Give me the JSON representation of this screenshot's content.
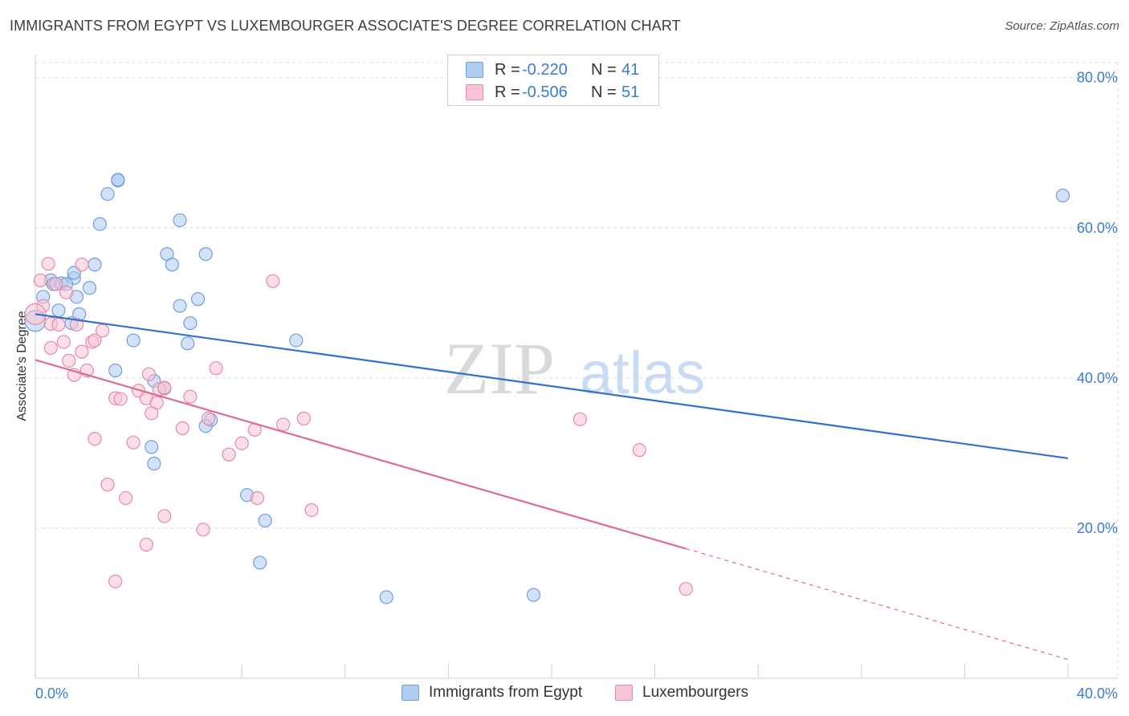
{
  "title": "IMMIGRANTS FROM EGYPT VS LUXEMBOURGER ASSOCIATE'S DEGREE CORRELATION CHART",
  "source": "Source: ZipAtlas.com",
  "watermark": {
    "zip": "ZIP",
    "atlas": "atlas"
  },
  "legend": {
    "rows": [
      {
        "r_label": "R =",
        "r_value": "-0.220",
        "n_label": "N =",
        "n_value": "41",
        "color": "#aecbf2",
        "border": "#6f9fdc"
      },
      {
        "r_label": "R =",
        "r_value": "-0.506",
        "n_label": "N =",
        "n_value": "51",
        "color": "#f7c4d3",
        "border": "#e88aa6"
      }
    ]
  },
  "bottom_legend": [
    {
      "label": "Immigrants from Egypt",
      "color": "#aecbf2",
      "border": "#6f9fdc"
    },
    {
      "label": "Luxembourgers",
      "color": "#f7c4d3",
      "border": "#e88aa6"
    }
  ],
  "chart_data": {
    "type": "scatter",
    "title": "IMMIGRANTS FROM EGYPT VS LUXEMBOURGER ASSOCIATE'S DEGREE CORRELATION CHART",
    "xlabel": "",
    "ylabel": "Associate's Degree",
    "xlim": [
      0,
      40
    ],
    "ylim": [
      0,
      82
    ],
    "x_tick_labels": {
      "left": "0.0%",
      "right": "40.0%"
    },
    "y_ticks": [
      20,
      40,
      60,
      80
    ],
    "y_tick_labels": [
      "20.0%",
      "40.0%",
      "60.0%",
      "80.0%"
    ],
    "grid": true,
    "series": [
      {
        "name": "Immigrants from Egypt",
        "color": "#aecbf2",
        "border": "#6f9fdc",
        "line_color": "#3170cf",
        "trend": {
          "x0": 0,
          "y0": 48.5,
          "x1": 40,
          "y1": 29.3,
          "dash_from": null
        },
        "points": [
          [
            0.3,
            50.8
          ],
          [
            0.6,
            53.0
          ],
          [
            0.7,
            52.5
          ],
          [
            1.0,
            52.6
          ],
          [
            1.5,
            53.3
          ],
          [
            1.6,
            50.8
          ],
          [
            2.3,
            55.1
          ],
          [
            2.8,
            64.5
          ],
          [
            3.2,
            66.3
          ],
          [
            3.2,
            66.4
          ],
          [
            2.5,
            60.5
          ],
          [
            1.5,
            54.0
          ],
          [
            1.2,
            52.5
          ],
          [
            2.1,
            52.0
          ],
          [
            0.9,
            49.0
          ],
          [
            1.7,
            48.5
          ],
          [
            1.4,
            47.3
          ],
          [
            5.1,
            56.5
          ],
          [
            5.3,
            55.1
          ],
          [
            6.6,
            56.5
          ],
          [
            5.6,
            61.0
          ],
          [
            6.3,
            50.5
          ],
          [
            5.6,
            49.6
          ],
          [
            6.0,
            47.3
          ],
          [
            3.8,
            45.0
          ],
          [
            5.9,
            44.6
          ],
          [
            10.1,
            45.0
          ],
          [
            3.1,
            41.0
          ],
          [
            4.6,
            39.6
          ],
          [
            5.0,
            38.6
          ],
          [
            6.8,
            34.4
          ],
          [
            6.6,
            33.6
          ],
          [
            4.5,
            30.8
          ],
          [
            4.6,
            28.6
          ],
          [
            8.2,
            24.4
          ],
          [
            8.9,
            21.0
          ],
          [
            8.7,
            15.4
          ],
          [
            13.6,
            10.8
          ],
          [
            19.3,
            11.1
          ],
          [
            39.8,
            64.3
          ],
          [
            0.0,
            47.6
          ]
        ]
      },
      {
        "name": "Luxembourgers",
        "color": "#f7c4d3",
        "border": "#e88aa6",
        "line_color": "#e06a97",
        "trend": {
          "x0": 0,
          "y0": 42.4,
          "x1": 40,
          "y1": 2.5,
          "dash_from": 25.2
        },
        "points": [
          [
            0.2,
            53.0
          ],
          [
            0.5,
            55.2
          ],
          [
            0.8,
            52.5
          ],
          [
            1.2,
            51.4
          ],
          [
            1.8,
            55.1
          ],
          [
            0.3,
            49.6
          ],
          [
            0.6,
            47.2
          ],
          [
            0.9,
            47.1
          ],
          [
            1.6,
            47.1
          ],
          [
            1.1,
            44.8
          ],
          [
            0.6,
            44.0
          ],
          [
            1.8,
            43.5
          ],
          [
            2.2,
            44.8
          ],
          [
            2.3,
            45.0
          ],
          [
            2.6,
            46.3
          ],
          [
            1.3,
            42.3
          ],
          [
            1.5,
            40.4
          ],
          [
            2.0,
            41.0
          ],
          [
            4.4,
            40.5
          ],
          [
            7.0,
            41.3
          ],
          [
            3.1,
            37.3
          ],
          [
            3.3,
            37.2
          ],
          [
            4.0,
            38.3
          ],
          [
            4.3,
            37.3
          ],
          [
            4.8,
            38.5
          ],
          [
            5.0,
            38.7
          ],
          [
            6.0,
            37.5
          ],
          [
            4.7,
            36.7
          ],
          [
            4.5,
            35.3
          ],
          [
            6.7,
            34.6
          ],
          [
            10.4,
            34.6
          ],
          [
            9.6,
            33.8
          ],
          [
            8.5,
            33.1
          ],
          [
            5.7,
            33.3
          ],
          [
            8.0,
            31.3
          ],
          [
            7.5,
            29.8
          ],
          [
            3.8,
            31.4
          ],
          [
            2.3,
            31.9
          ],
          [
            2.8,
            25.8
          ],
          [
            3.5,
            24.0
          ],
          [
            8.6,
            24.0
          ],
          [
            10.7,
            22.4
          ],
          [
            5.0,
            21.6
          ],
          [
            6.5,
            19.8
          ],
          [
            4.3,
            17.8
          ],
          [
            3.1,
            12.9
          ],
          [
            9.2,
            52.9
          ],
          [
            21.1,
            34.5
          ],
          [
            23.4,
            30.4
          ],
          [
            25.2,
            11.9
          ],
          [
            0.0,
            48.5
          ]
        ]
      }
    ]
  }
}
